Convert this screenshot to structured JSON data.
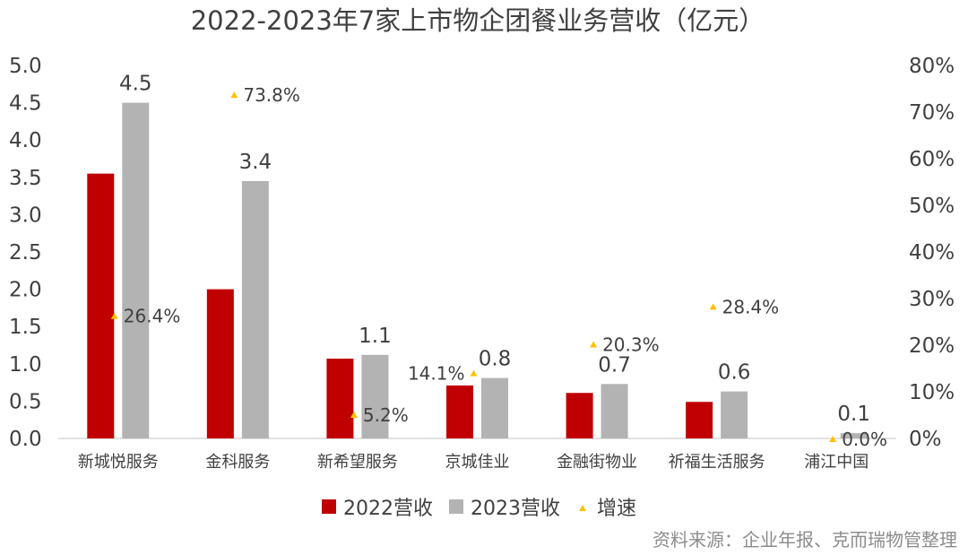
{
  "chart_data": {
    "type": "bar",
    "title": "2022-2023年7家上市物企团餐业务营收（亿元）",
    "categories": [
      "新城悦服务",
      "金科服务",
      "新希望服务",
      "京城佳业",
      "金融街物业",
      "祈福生活服务",
      "浦江中国"
    ],
    "series": [
      {
        "name": "2022营收",
        "type": "bar",
        "axis": "left",
        "color": "#c00000",
        "values": [
          3.55,
          2.0,
          1.07,
          0.71,
          0.61,
          0.49,
          0.0
        ]
      },
      {
        "name": "2023营收",
        "type": "bar",
        "axis": "left",
        "color": "#b3b3b3",
        "values": [
          4.5,
          3.45,
          1.12,
          0.81,
          0.73,
          0.63,
          0.07
        ],
        "labels": [
          "4.5",
          "3.4",
          "1.1",
          "0.8",
          "0.7",
          "0.6",
          "0.1"
        ]
      },
      {
        "name": "增速",
        "type": "marker",
        "axis": "right",
        "color": "#ffc000",
        "values": [
          26.4,
          73.8,
          5.2,
          14.1,
          20.3,
          28.4,
          0.0
        ],
        "labels": [
          "26.4%",
          "73.8%",
          "5.2%",
          "14.1%",
          "20.3%",
          "28.4%",
          "0.0%"
        ]
      }
    ],
    "y_left": {
      "ylim": [
        0,
        5.0
      ],
      "ticks": [
        "0.0",
        "0.5",
        "1.0",
        "1.5",
        "2.0",
        "2.5",
        "3.0",
        "3.5",
        "4.0",
        "4.5",
        "5.0"
      ]
    },
    "y_right": {
      "ylim": [
        0,
        80
      ],
      "ticks": [
        "0%",
        "10%",
        "20%",
        "30%",
        "40%",
        "50%",
        "60%",
        "70%",
        "80%"
      ]
    },
    "grid": false,
    "legend_position": "bottom",
    "source": "资料来源：企业年报、克而瑞物管整理"
  }
}
